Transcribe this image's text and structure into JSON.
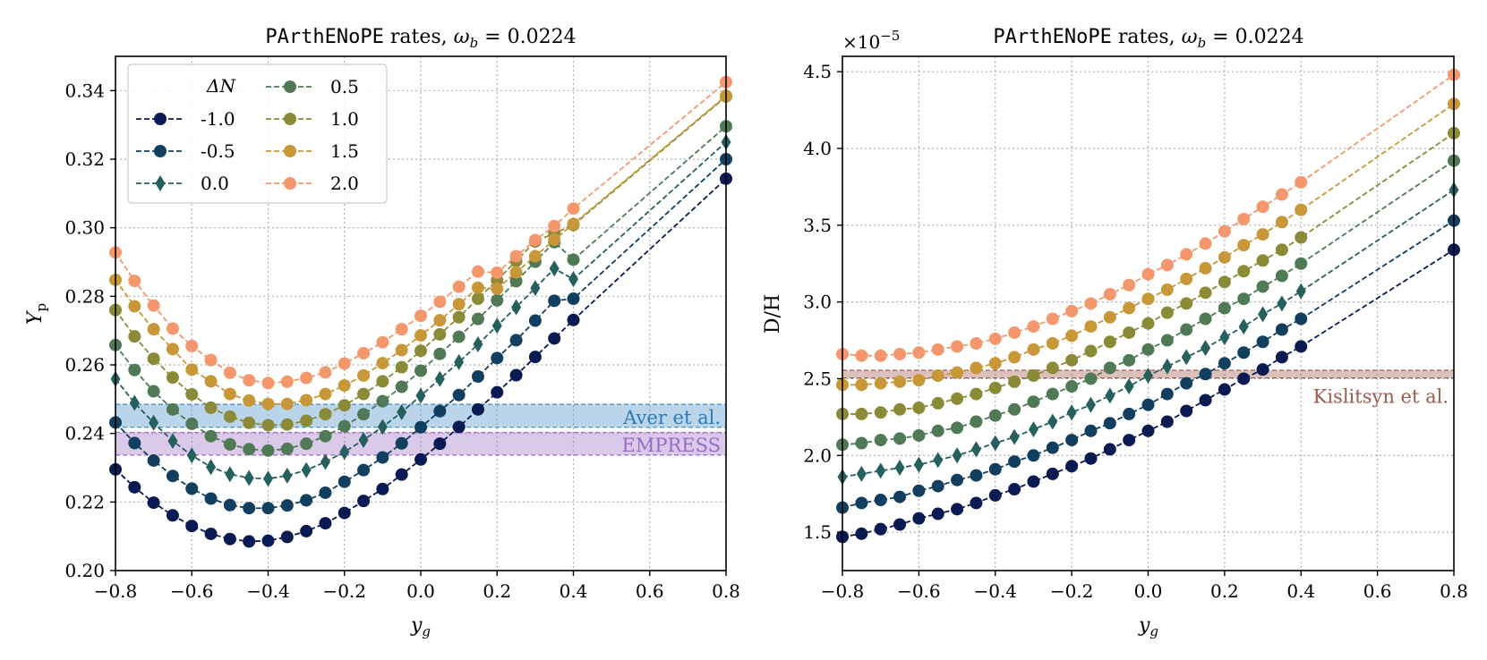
{
  "chart_data": [
    {
      "type": "line",
      "title_code": "PArthENoPE",
      "title_rest": " rates, ",
      "title_omega": "ω",
      "title_sub": "b",
      "title_eq": " = 0.0224",
      "xlabel": "y",
      "xlabel_sub": "g",
      "ylabel": "Y",
      "ylabel_sub": "p",
      "xlim": [
        -0.8,
        0.8
      ],
      "ylim": [
        0.2,
        0.35
      ],
      "xticks": [
        -0.8,
        -0.6,
        -0.4,
        -0.2,
        0.0,
        0.2,
        0.4,
        0.6,
        0.8
      ],
      "xtick_labels": [
        "−0.8",
        "−0.6",
        "−0.4",
        "−0.2",
        "0.0",
        "0.2",
        "0.4",
        "0.6",
        "0.8"
      ],
      "yticks": [
        0.2,
        0.22,
        0.24,
        0.26,
        0.28,
        0.3,
        0.32,
        0.34
      ],
      "ytick_labels": [
        "0.20",
        "0.22",
        "0.24",
        "0.26",
        "0.28",
        "0.30",
        "0.32",
        "0.34"
      ],
      "grid": true,
      "legend_title": "ΔN",
      "legend_position": "top-left",
      "x": [
        -0.8,
        -0.75,
        -0.7,
        -0.65,
        -0.6,
        -0.55,
        -0.5,
        -0.45,
        -0.4,
        -0.35,
        -0.3,
        -0.25,
        -0.2,
        -0.15,
        -0.1,
        -0.05,
        0.0,
        0.05,
        0.1,
        0.15,
        0.2,
        0.25,
        0.3,
        0.35,
        0.4
      ],
      "x_end": 0.8,
      "series": [
        {
          "name": "-1.0",
          "color": "#0a1a52",
          "marker": "circle",
          "values": [
            0.2295,
            0.2243,
            0.2198,
            0.2161,
            0.213,
            0.2107,
            0.2092,
            0.2085,
            0.2087,
            0.2098,
            0.2115,
            0.2138,
            0.2168,
            0.2203,
            0.2238,
            0.228,
            0.2324,
            0.237,
            0.2419,
            0.247,
            0.252,
            0.257,
            0.2623,
            0.2677,
            0.2731
          ],
          "end": 0.3143
        },
        {
          "name": "-0.5",
          "color": "#123e60",
          "marker": "circle",
          "values": [
            0.2432,
            0.2372,
            0.2321,
            0.2276,
            0.2239,
            0.221,
            0.2191,
            0.2182,
            0.2182,
            0.219,
            0.2205,
            0.2227,
            0.2259,
            0.2293,
            0.233,
            0.2371,
            0.2418,
            0.2465,
            0.2512,
            0.2566,
            0.262,
            0.2672,
            0.2729,
            0.2787,
            0.2793
          ],
          "end": 0.32
        },
        {
          "name": "0.0",
          "color": "#25605e",
          "marker": "diamond",
          "values": [
            0.2559,
            0.2489,
            0.2431,
            0.2378,
            0.2336,
            0.2302,
            0.2281,
            0.227,
            0.2268,
            0.2277,
            0.2293,
            0.2317,
            0.2346,
            0.2381,
            0.2419,
            0.2462,
            0.251,
            0.2559,
            0.2608,
            0.266,
            0.2714,
            0.2768,
            0.2824,
            0.2881,
            0.285
          ],
          "end": 0.325
        },
        {
          "name": "0.5",
          "color": "#4f7a55",
          "marker": "circle",
          "values": [
            0.2658,
            0.2585,
            0.2523,
            0.247,
            0.2428,
            0.2392,
            0.2368,
            0.2354,
            0.235,
            0.2355,
            0.237,
            0.2392,
            0.2421,
            0.2456,
            0.2494,
            0.2536,
            0.2583,
            0.2632,
            0.2682,
            0.2734,
            0.2788,
            0.2844,
            0.2901,
            0.2958,
            0.2907
          ],
          "end": 0.3296
        },
        {
          "name": "1.0",
          "color": "#8b8a36",
          "marker": "circle",
          "values": [
            0.276,
            0.2683,
            0.2618,
            0.2563,
            0.2514,
            0.2475,
            0.2449,
            0.2431,
            0.2424,
            0.2426,
            0.2437,
            0.2456,
            0.2482,
            0.2515,
            0.2552,
            0.2593,
            0.2641,
            0.2689,
            0.2739,
            0.2793,
            0.2847,
            0.2903,
            0.296,
            0.2984,
            0.3008
          ],
          "end": 0.3383
        },
        {
          "name": "1.5",
          "color": "#c89838",
          "marker": "circle",
          "values": [
            0.2848,
            0.2771,
            0.2704,
            0.2646,
            0.2586,
            0.2552,
            0.2515,
            0.2496,
            0.2486,
            0.2486,
            0.2497,
            0.2515,
            0.254,
            0.2569,
            0.2605,
            0.2643,
            0.2686,
            0.273,
            0.2777,
            0.2825,
            0.2822,
            0.287,
            0.2917,
            0.2965,
            0.3011
          ],
          "end": 0.3385
        },
        {
          "name": "2.0",
          "color": "#f4976c",
          "marker": "circle",
          "values": [
            0.2928,
            0.2845,
            0.2773,
            0.2706,
            0.2655,
            0.2614,
            0.2577,
            0.2555,
            0.2547,
            0.2551,
            0.2562,
            0.2578,
            0.2604,
            0.2634,
            0.2666,
            0.2704,
            0.2743,
            0.2784,
            0.2828,
            0.2872,
            0.2869,
            0.2917,
            0.2964,
            0.3005,
            0.3056
          ],
          "end": 0.3425
        }
      ],
      "bands": [
        {
          "label": "Aver et al.",
          "lo": 0.2418,
          "hi": 0.2485,
          "fill": "#4a90c8",
          "text_color": "#2e7ab8"
        },
        {
          "label": "EMPRESS",
          "lo": 0.2337,
          "hi": 0.2403,
          "fill": "#a070c8",
          "text_color": "#9a6bc6"
        }
      ]
    },
    {
      "type": "line",
      "title_code": "PArthENoPE",
      "title_rest": " rates, ",
      "title_omega": "ω",
      "title_sub": "b",
      "title_eq": " = 0.0224",
      "xlabel": "y",
      "xlabel_sub": "g",
      "ylabel": "D/H",
      "offset_text": "×10",
      "offset_exp": "−5",
      "xlim": [
        -0.8,
        0.8
      ],
      "ylim": [
        1.25,
        4.6
      ],
      "xticks": [
        -0.8,
        -0.6,
        -0.4,
        -0.2,
        0.0,
        0.2,
        0.4,
        0.6,
        0.8
      ],
      "xtick_labels": [
        "−0.8",
        "−0.6",
        "−0.4",
        "−0.2",
        "0.0",
        "0.2",
        "0.4",
        "0.6",
        "0.8"
      ],
      "yticks": [
        1.5,
        2.0,
        2.5,
        3.0,
        3.5,
        4.0,
        4.5
      ],
      "ytick_labels": [
        "1.5",
        "2.0",
        "2.5",
        "3.0",
        "3.5",
        "4.0",
        "4.5"
      ],
      "grid": true,
      "x": [
        -0.8,
        -0.75,
        -0.7,
        -0.65,
        -0.6,
        -0.55,
        -0.5,
        -0.45,
        -0.4,
        -0.35,
        -0.3,
        -0.25,
        -0.2,
        -0.15,
        -0.1,
        -0.05,
        0.0,
        0.05,
        0.1,
        0.15,
        0.2,
        0.25,
        0.3,
        0.35,
        0.4
      ],
      "x_end": 0.8,
      "series": [
        {
          "name": "-1.0",
          "color": "#0a1a52",
          "marker": "circle",
          "values": [
            1.47,
            1.49,
            1.52,
            1.55,
            1.59,
            1.62,
            1.65,
            1.69,
            1.74,
            1.78,
            1.83,
            1.88,
            1.93,
            1.98,
            2.04,
            2.1,
            2.16,
            2.22,
            2.29,
            2.36,
            2.43,
            2.5,
            2.56,
            2.64,
            2.71
          ],
          "end": 3.34
        },
        {
          "name": "-0.5",
          "color": "#123e60",
          "marker": "circle",
          "values": [
            1.66,
            1.69,
            1.71,
            1.73,
            1.77,
            1.8,
            1.84,
            1.87,
            1.91,
            1.96,
            2.0,
            2.05,
            2.1,
            2.16,
            2.21,
            2.27,
            2.33,
            2.4,
            2.47,
            2.53,
            2.6,
            2.67,
            2.74,
            2.82,
            2.89
          ],
          "end": 3.53
        },
        {
          "name": "0.0",
          "color": "#25605e",
          "marker": "diamond",
          "values": [
            1.86,
            1.88,
            1.9,
            1.92,
            1.94,
            1.97,
            2.0,
            2.04,
            2.08,
            2.12,
            2.17,
            2.22,
            2.28,
            2.33,
            2.39,
            2.45,
            2.52,
            2.58,
            2.64,
            2.7,
            2.77,
            2.84,
            2.92,
            2.99,
            3.07
          ],
          "end": 3.73
        },
        {
          "name": "0.5",
          "color": "#4f7a55",
          "marker": "circle",
          "values": [
            2.07,
            2.08,
            2.1,
            2.11,
            2.13,
            2.16,
            2.18,
            2.22,
            2.26,
            2.3,
            2.35,
            2.4,
            2.45,
            2.5,
            2.57,
            2.62,
            2.69,
            2.75,
            2.82,
            2.89,
            2.96,
            3.02,
            3.1,
            3.17,
            3.25
          ],
          "end": 3.92
        },
        {
          "name": "1.0",
          "color": "#8b8a36",
          "marker": "circle",
          "values": [
            2.27,
            2.27,
            2.28,
            2.3,
            2.31,
            2.34,
            2.37,
            2.4,
            2.44,
            2.48,
            2.52,
            2.57,
            2.62,
            2.68,
            2.74,
            2.8,
            2.86,
            2.93,
            2.99,
            3.06,
            3.13,
            3.2,
            3.27,
            3.34,
            3.42
          ],
          "end": 4.1
        },
        {
          "name": "1.5",
          "color": "#c89838",
          "marker": "circle",
          "values": [
            2.46,
            2.46,
            2.47,
            2.48,
            2.49,
            2.52,
            2.54,
            2.57,
            2.6,
            2.64,
            2.69,
            2.73,
            2.78,
            2.84,
            2.9,
            2.96,
            3.02,
            3.08,
            3.15,
            3.22,
            3.29,
            3.37,
            3.44,
            3.52,
            3.6
          ],
          "end": 4.29
        },
        {
          "name": "2.0",
          "color": "#f4976c",
          "marker": "circle",
          "values": [
            2.66,
            2.65,
            2.65,
            2.66,
            2.67,
            2.69,
            2.71,
            2.73,
            2.76,
            2.8,
            2.84,
            2.89,
            2.94,
            2.99,
            3.05,
            3.11,
            3.18,
            3.24,
            3.31,
            3.38,
            3.46,
            3.54,
            3.62,
            3.7,
            3.78
          ],
          "end": 4.48
        }
      ],
      "bands": [
        {
          "label": "Kislitsyn et al.",
          "lo": 2.505,
          "hi": 2.555,
          "fill": "#a05a4c",
          "text_color": "#9a5a4c"
        }
      ]
    }
  ]
}
